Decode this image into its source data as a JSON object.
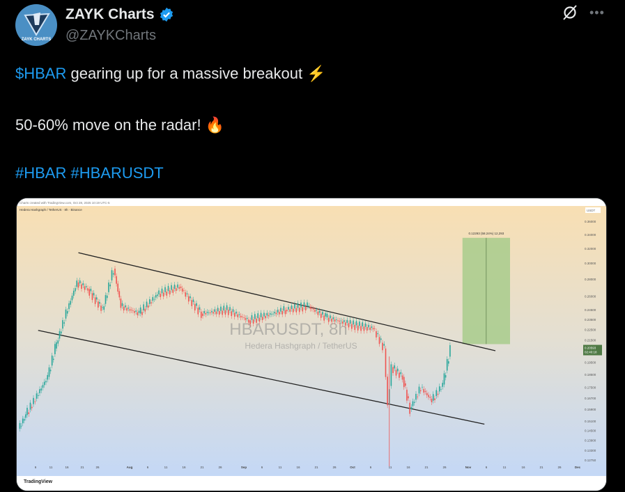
{
  "tweet": {
    "author_name": "ZAYK Charts",
    "handle": "@ZAYKCharts",
    "avatar_text": "ZAYK CHARTS",
    "verified": true,
    "line1_cashtag": "$HBAR",
    "line1_text": " gearing up for a massive breakout ⚡",
    "line2_text": "50-60% move on the radar! 🔥",
    "hashtags": [
      "#HBAR",
      "#HBARUSDT"
    ],
    "icons": {
      "grok": "grok-icon",
      "more": "more-icon"
    }
  },
  "chart_data": {
    "type": "candlestick",
    "header": "Charts created with TradingView.com, Oct 28, 2025 10:19 UTC-5",
    "info_line": "Hedera Hashgraph / TetherUS · 8h · Binance",
    "watermark_title": "HBARUSDT, 8h",
    "watermark_subtitle": "Hedera Hashgraph / TetherUS",
    "currency": "USDT",
    "brand": "TradingView",
    "y_scale": "log",
    "y_ticks": [
      "0.36000",
      "0.34000",
      "0.32000",
      "0.30000",
      "0.28000",
      "0.26000",
      "0.24500",
      "0.23500",
      "0.22500",
      "0.21500",
      "0.19500",
      "0.18500",
      "0.17500",
      "0.16700",
      "0.15900",
      "0.15100",
      "0.14500",
      "0.13900",
      "0.13300",
      "0.12750"
    ],
    "current_price": "0.20593",
    "countdown": "02:40:18",
    "x_ticks": [
      "6",
      "11",
      "16",
      "21",
      "26",
      "Aug",
      "6",
      "11",
      "16",
      "21",
      "26",
      "Sep",
      "6",
      "11",
      "16",
      "21",
      "26",
      "Oct",
      "6",
      "11",
      "16",
      "21",
      "26",
      "Nov",
      "6",
      "11",
      "16",
      "21",
      "26",
      "Dec"
    ],
    "price_path": [
      [
        "2025-07-02",
        0.146
      ],
      [
        "2025-07-04",
        0.155
      ],
      [
        "2025-07-10",
        0.183
      ],
      [
        "2025-07-12",
        0.207
      ],
      [
        "2025-07-15",
        0.241
      ],
      [
        "2025-07-18",
        0.276
      ],
      [
        "2025-07-21",
        0.268
      ],
      [
        "2025-07-25",
        0.245
      ],
      [
        "2025-07-28",
        0.293
      ],
      [
        "2025-07-30",
        0.249
      ],
      [
        "2025-08-04",
        0.241
      ],
      [
        "2025-08-09",
        0.262
      ],
      [
        "2025-08-15",
        0.271
      ],
      [
        "2025-08-21",
        0.241
      ],
      [
        "2025-08-28",
        0.245
      ],
      [
        "2025-09-03",
        0.234
      ],
      [
        "2025-09-13",
        0.245
      ],
      [
        "2025-09-19",
        0.249
      ],
      [
        "2025-09-24",
        0.237
      ],
      [
        "2025-10-02",
        0.229
      ],
      [
        "2025-10-07",
        0.226
      ],
      [
        "2025-10-10",
        0.207
      ],
      [
        "2025-10-11",
        0.162
      ],
      [
        "2025-10-12",
        0.191
      ],
      [
        "2025-10-15",
        0.183
      ],
      [
        "2025-10-17",
        0.159
      ],
      [
        "2025-10-20",
        0.175
      ],
      [
        "2025-10-23",
        0.165
      ],
      [
        "2025-10-26",
        0.177
      ],
      [
        "2025-10-28",
        0.206
      ]
    ],
    "crash_wick_low": 0.124,
    "trendlines": [
      {
        "from": [
          "2025-07-18",
          0.314
        ],
        "to": [
          "2025-11-09",
          0.205
        ]
      },
      {
        "from": [
          "2025-07-07",
          0.224
        ],
        "to": [
          "2025-11-06",
          0.149
        ]
      }
    ],
    "target_box": {
      "from": "2025-10-31",
      "to": "2025-11-13",
      "low": 0.211,
      "high": 0.335,
      "label": "0.12293 (58.24%) 12,293",
      "color": "#a8cc8c"
    },
    "up_color": "#26a69a",
    "down_color": "#ef5350"
  }
}
